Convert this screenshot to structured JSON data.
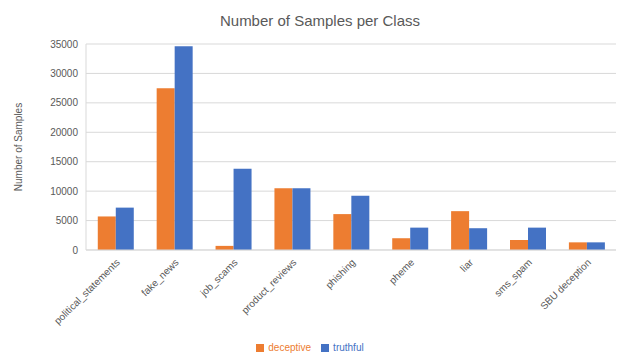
{
  "chart_data": {
    "type": "bar",
    "title": "Number of Samples per Class",
    "y_label": "Number of Samples",
    "categories": [
      "political_statements",
      "fake_news",
      "job_scams",
      "product_reviews",
      "phishing",
      "pheme",
      "liar",
      "sms_spam",
      "SBU deception"
    ],
    "series": [
      {
        "name": "deceptive",
        "color": "#ed7d31",
        "values": [
          5700,
          27500,
          700,
          10500,
          6100,
          2000,
          6600,
          1700,
          1300
        ]
      },
      {
        "name": "truthful",
        "color": "#4472c4",
        "values": [
          7200,
          34600,
          13800,
          10500,
          9200,
          3800,
          3700,
          3800,
          1300
        ]
      }
    ],
    "ylim": [
      0,
      35000
    ],
    "yticks": [
      0,
      5000,
      10000,
      15000,
      20000,
      25000,
      30000,
      35000
    ],
    "grid": true,
    "legend": "bottom"
  }
}
